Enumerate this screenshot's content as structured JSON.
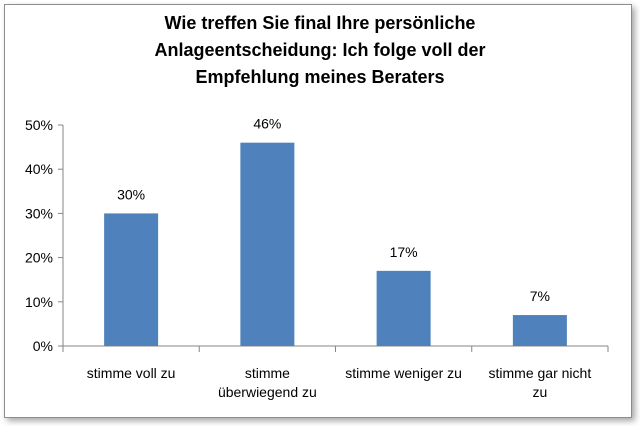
{
  "chart_data": {
    "type": "bar",
    "title_lines": [
      "Wie treffen Sie final Ihre persönliche",
      "Anlageentscheidung: Ich folge voll der",
      "Empfehlung meines Beraters"
    ],
    "categories": [
      [
        "stimme voll zu"
      ],
      [
        "stimme",
        "überwiegend zu"
      ],
      [
        "stimme weniger zu"
      ],
      [
        "stimme gar nicht",
        "zu"
      ]
    ],
    "values": [
      30,
      46,
      17,
      7
    ],
    "data_labels": [
      "30%",
      "46%",
      "17%",
      "7%"
    ],
    "yticks": [
      0,
      10,
      20,
      30,
      40,
      50
    ],
    "ytick_labels": [
      "0%",
      "10%",
      "20%",
      "30%",
      "40%",
      "50%"
    ],
    "ylim": [
      0,
      50
    ],
    "grid": false,
    "legend": "none",
    "bar_color": "#4f81bd",
    "xlabel": "",
    "ylabel": ""
  }
}
